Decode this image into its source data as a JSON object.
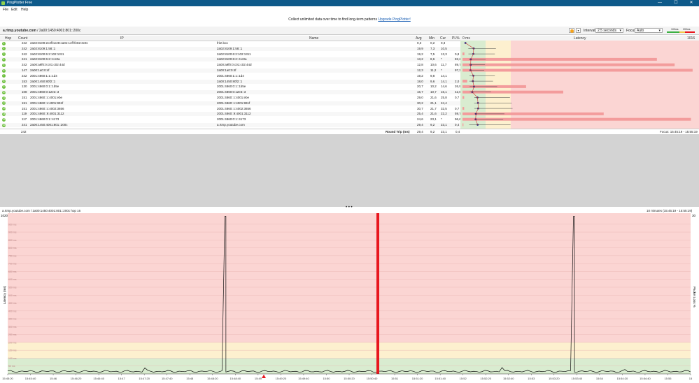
{
  "window": {
    "title": "PingPlotter Free",
    "buttons": [
      "—",
      "☐",
      "✕"
    ]
  },
  "menu": [
    "File",
    "Edit",
    "Help"
  ],
  "banner": {
    "message": "Collect unlimited data over time to find long-term patterns",
    "link": "Upgrade PingPlotter!"
  },
  "address": {
    "host": "a.rtmp.youtube.com",
    "ip": " / 2a00:1450:4001:801::200c"
  },
  "toolbar": {
    "interval_label": "Interval:",
    "interval_value": "2.5 seconds",
    "focus_label": "Focus:",
    "focus_value": "Auto",
    "legend_100": "100ms",
    "legend_200": "200ms"
  },
  "columns": {
    "hop": "Hop",
    "count": "Count",
    "ip": "IP",
    "name": "Name",
    "avg": "Avg",
    "min": "Min",
    "cur": "Cur",
    "pl": "PL%",
    "zero": "0 ms",
    "latency": "Latency",
    "max": "1016 ms"
  },
  "hops": [
    {
      "hop": "1",
      "count": "242",
      "ip": "2a02:8109:2c3f:be28:ca0e:14ff:fe82:3c9c",
      "name": "fritz.box",
      "avg": "0,3",
      "min": "0,2",
      "cur": "0,3",
      "pl": ""
    },
    {
      "hop": "2",
      "count": "242",
      "ip": "2a02:8109:1:58::1",
      "name": "2a02:8109:1:58::1",
      "avg": "19,9",
      "min": "7,3",
      "cur": "10,5",
      "pl": ""
    },
    {
      "hop": "3",
      "count": "242",
      "ip": "2a02:8100:6:2:102:1311",
      "name": "2a02:8100:6:2:102:1311",
      "avg": "19,2",
      "min": "7,5",
      "cur": "13,3",
      "pl": "0,8"
    },
    {
      "hop": "4",
      "count": "241",
      "ip": "2a02:8100:6:2::4:e0a",
      "name": "2a02:8100:6:2::4:e0a",
      "avg": "13,2",
      "min": "8,6",
      "cur": "*",
      "pl": "82,2"
    },
    {
      "hop": "5",
      "count": "242",
      "ip": "2a00:a9f0:0:c01:c02:44d",
      "name": "2a00:a9f0:0:c01:c02:44d",
      "avg": "12,8",
      "min": "10,6",
      "cur": "11,7",
      "pl": "89,7"
    },
    {
      "hop": "6",
      "count": "147",
      "ip": "2a00:1a0:0:4f",
      "name": "2a00:1a0:0:4f",
      "avg": "12,3",
      "min": "11,2",
      "cur": "*",
      "pl": "97,3"
    },
    {
      "hop": "7",
      "count": "242",
      "ip": "2001:4860:1:1::1d4",
      "name": "2001:4860:1:1::1d4",
      "avg": "19,2",
      "min": "9,8",
      "cur": "14,1",
      "pl": ""
    },
    {
      "hop": "8",
      "count": "153",
      "ip": "2a00:1450:80f2::1",
      "name": "2a00:1450:80f2::1",
      "avg": "18,0",
      "min": "9,6",
      "cur": "14,1",
      "pl": "2,0"
    },
    {
      "hop": "9",
      "count": "130",
      "ip": "2001:4860:0:1::1b5e",
      "name": "2001:4860:0:1::1b5e",
      "avg": "20,7",
      "min": "10,2",
      "cur": "14,6",
      "pl": "26,9"
    },
    {
      "hop": "10",
      "count": "108",
      "ip": "2001:4860:0:12e3::3",
      "name": "2001:4860:0:12e3::3",
      "avg": "16,7",
      "min": "10,7",
      "cur": "16,1",
      "pl": "42,6"
    },
    {
      "hop": "11",
      "count": "151",
      "ip": "2001:4860::c:4001:ebe",
      "name": "2001:4860::c:4001:ebe",
      "avg": "29,0",
      "min": "21,6",
      "cur": "25,8",
      "pl": "0,7"
    },
    {
      "hop": "12",
      "count": "151",
      "ip": "2001:4860::c:4001:991f",
      "name": "2001:4860::c:4001:991f",
      "avg": "30,2",
      "min": "21,1",
      "cur": "24,4",
      "pl": ""
    },
    {
      "hop": "13",
      "count": "151",
      "ip": "2001:4860::c:4002:3656",
      "name": "2001:4860::c:4002:3656",
      "avg": "30,7",
      "min": "21,7",
      "cur": "32,5",
      "pl": "0,7"
    },
    {
      "hop": "14",
      "count": "119",
      "ip": "2001:4860::9:4001:3112",
      "name": "2001:4860::9:4001:3112",
      "avg": "25,4",
      "min": "21,6",
      "cur": "22,2",
      "pl": "59,7"
    },
    {
      "hop": "15",
      "count": "117",
      "ip": "2001:4860:0:1::4173",
      "name": "2001:4860:0:1::4173",
      "avg": "24,6",
      "min": "23,1",
      "cur": "*",
      "pl": "96,6"
    },
    {
      "hop": "16",
      "count": "241",
      "ip": "2a00:1450:4001:801::200c",
      "name": "a.rtmp.youtube.com",
      "avg": "29,4",
      "min": "9,2",
      "cur": "23,1",
      "pl": "0,4"
    }
  ],
  "summary": {
    "count": "242",
    "label": "Round Trip (ms)",
    "avg": "29,4",
    "min": "9,2",
    "cur": "23,1",
    "pl": "0,4",
    "focus": "Focus: 15:45:19 - 15:55:19"
  },
  "graph": {
    "title": "a.rtmp.youtube.com / 2a00:1450:4001:801::200c hop 16",
    "range": "10 minutes (15:45:19 - 15:55:19)",
    "ymax": "1020",
    "ylabel": "Latency (ms)",
    "rlabel": "Packet Loss %",
    "rtop": "30",
    "yticks": [
      "950 ms",
      "900 ms",
      "850 ms",
      "800 ms",
      "750 ms",
      "700 ms",
      "650 ms",
      "600 ms",
      "550 ms",
      "500 ms",
      "450 ms",
      "400 ms",
      "350 ms",
      "300 ms",
      "250 ms",
      "200 ms",
      "150 ms",
      "100 ms",
      "50 ms"
    ],
    "xticks": [
      "15:45:20",
      "15:45:40",
      "15:46",
      "15:46:20",
      "15:46:40",
      "15:47",
      "15:47:20",
      "15:47:40",
      "15:48",
      "15:48:20",
      "15:48:40",
      "15:49",
      "15:49:20",
      "15:49:40",
      "15:50",
      "15:50:20",
      "15:50:40",
      "15:51",
      "15:51:20",
      "15:51:40",
      "15:52",
      "15:52:20",
      "15:52:40",
      "15:53",
      "15:53:20",
      "15:53:40",
      "15:54",
      "15:54:20",
      "15:54:40",
      "15:55",
      "15"
    ]
  },
  "colors": {
    "titlebar": "#0e5a8a",
    "good": "#d9ecd0",
    "warn": "#fdf0cf",
    "bad": "#fbd5d3",
    "loss": "#e8171e"
  }
}
